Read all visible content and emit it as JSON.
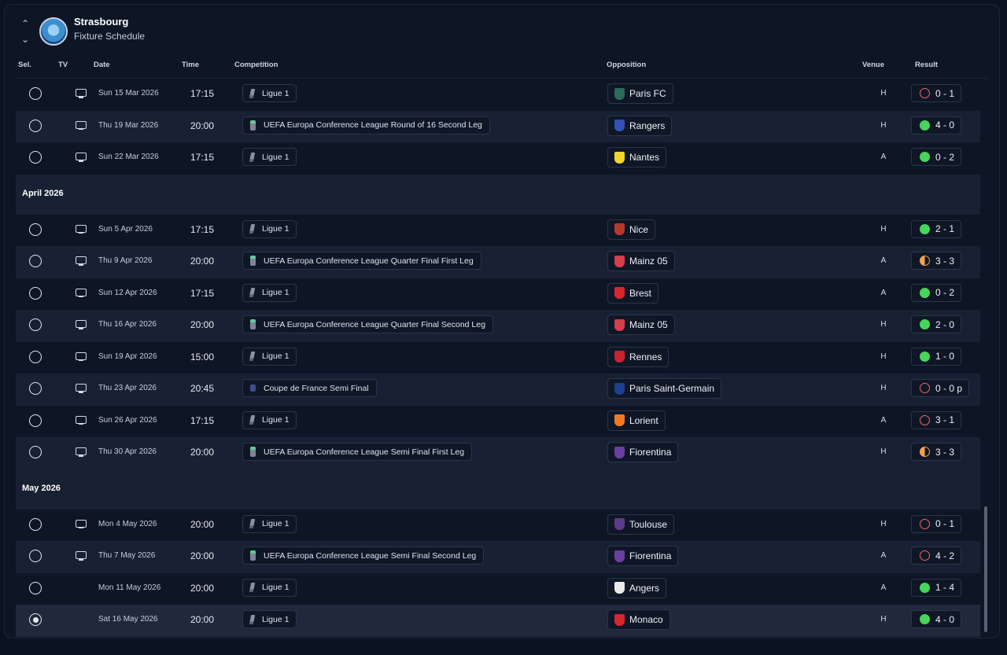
{
  "header": {
    "club_name": "Strasbourg",
    "subtitle": "Fixture Schedule",
    "up_arrow_icon": "chevron-up-icon",
    "down_arrow_icon": "chevron-down-icon"
  },
  "columns": {
    "sel": "Sel.",
    "tv": "TV",
    "date": "Date",
    "time": "Time",
    "competition": "Competition",
    "opposition": "Opposition",
    "venue": "Venue",
    "result": "Result"
  },
  "months": {
    "april": "April 2026",
    "may": "May 2026"
  },
  "colors": {
    "win": "#46d55a",
    "loss": "#f06464",
    "draw": "#f5a34a",
    "background": "#0e1626"
  },
  "fixtures": [
    {
      "date": "Sun 15 Mar 2026",
      "time": "17:15",
      "competition": "Ligue 1",
      "comp_icon": "ligue1",
      "opponent": "Paris FC",
      "crest": "#2b6b5a",
      "venue": "H",
      "result": "0 - 1",
      "outcome": "loss",
      "tv": true,
      "selected": false
    },
    {
      "date": "Thu 19 Mar 2026",
      "time": "20:00",
      "competition": "UEFA Europa Conference League Round of 16  Second Leg",
      "comp_icon": "uecl",
      "opponent": "Rangers",
      "crest": "#3451b6",
      "venue": "H",
      "result": "4 - 0",
      "outcome": "win",
      "tv": true,
      "selected": false
    },
    {
      "date": "Sun 22 Mar 2026",
      "time": "17:15",
      "competition": "Ligue 1",
      "comp_icon": "ligue1",
      "opponent": "Nantes",
      "crest": "#f0d72a",
      "venue": "A",
      "result": "0 - 2",
      "outcome": "win",
      "tv": true,
      "selected": false
    },
    {
      "date": "Sun 5 Apr 2026",
      "time": "17:15",
      "competition": "Ligue 1",
      "comp_icon": "ligue1",
      "opponent": "Nice",
      "crest": "#b33a2a",
      "venue": "H",
      "result": "2 - 1",
      "outcome": "win",
      "tv": true,
      "selected": false
    },
    {
      "date": "Thu 9 Apr 2026",
      "time": "20:00",
      "competition": "UEFA Europa Conference League Quarter Final First Leg",
      "comp_icon": "uecl",
      "opponent": "Mainz 05",
      "crest": "#d63d4d",
      "venue": "A",
      "result": "3 - 3",
      "outcome": "draw",
      "tv": true,
      "selected": false
    },
    {
      "date": "Sun 12 Apr 2026",
      "time": "17:15",
      "competition": "Ligue 1",
      "comp_icon": "ligue1",
      "opponent": "Brest",
      "crest": "#d8252e",
      "venue": "A",
      "result": "0 - 2",
      "outcome": "win",
      "tv": true,
      "selected": false
    },
    {
      "date": "Thu 16 Apr 2026",
      "time": "20:00",
      "competition": "UEFA Europa Conference League Quarter Final Second Leg",
      "comp_icon": "uecl",
      "opponent": "Mainz 05",
      "crest": "#d63d4d",
      "venue": "H",
      "result": "2 - 0",
      "outcome": "win",
      "tv": true,
      "selected": false
    },
    {
      "date": "Sun 19 Apr 2026",
      "time": "15:00",
      "competition": "Ligue 1",
      "comp_icon": "ligue1",
      "opponent": "Rennes",
      "crest": "#c8232b",
      "venue": "H",
      "result": "1 - 0",
      "outcome": "win",
      "tv": true,
      "selected": false
    },
    {
      "date": "Thu 23 Apr 2026",
      "time": "20:45",
      "competition": "Coupe de France Semi Final",
      "comp_icon": "cdf",
      "opponent": "Paris Saint-Germain",
      "crest": "#1d3f8f",
      "venue": "H",
      "result": "0 - 0 p",
      "outcome": "loss",
      "tv": true,
      "selected": false
    },
    {
      "date": "Sun 26 Apr 2026",
      "time": "17:15",
      "competition": "Ligue 1",
      "comp_icon": "ligue1",
      "opponent": "Lorient",
      "crest": "#ef7a22",
      "venue": "A",
      "result": "3 - 1",
      "outcome": "loss",
      "tv": true,
      "selected": false
    },
    {
      "date": "Thu 30 Apr 2026",
      "time": "20:00",
      "competition": "UEFA Europa Conference League Semi Final First Leg",
      "comp_icon": "uecl",
      "opponent": "Fiorentina",
      "crest": "#6b3fa0",
      "venue": "H",
      "result": "3 - 3",
      "outcome": "draw",
      "tv": true,
      "selected": false
    },
    {
      "date": "Mon 4 May 2026",
      "time": "20:00",
      "competition": "Ligue 1",
      "comp_icon": "ligue1",
      "opponent": "Toulouse",
      "crest": "#5d3b8a",
      "venue": "H",
      "result": "0 - 1",
      "outcome": "loss",
      "tv": true,
      "selected": false
    },
    {
      "date": "Thu 7 May 2026",
      "time": "20:00",
      "competition": "UEFA Europa Conference League Semi Final Second Leg",
      "comp_icon": "uecl",
      "opponent": "Fiorentina",
      "crest": "#6b3fa0",
      "venue": "A",
      "result": "4 - 2",
      "outcome": "loss",
      "tv": true,
      "selected": false
    },
    {
      "date": "Mon 11 May 2026",
      "time": "20:00",
      "competition": "Ligue 1",
      "comp_icon": "ligue1",
      "opponent": "Angers",
      "crest": "#e9e9e9",
      "venue": "A",
      "result": "1 - 4",
      "outcome": "win",
      "tv": false,
      "selected": false
    },
    {
      "date": "Sat 16 May 2026",
      "time": "20:00",
      "competition": "Ligue 1",
      "comp_icon": "ligue1",
      "opponent": "Monaco",
      "crest": "#d8252e",
      "venue": "H",
      "result": "4 - 0",
      "outcome": "win",
      "tv": false,
      "selected": true
    }
  ]
}
